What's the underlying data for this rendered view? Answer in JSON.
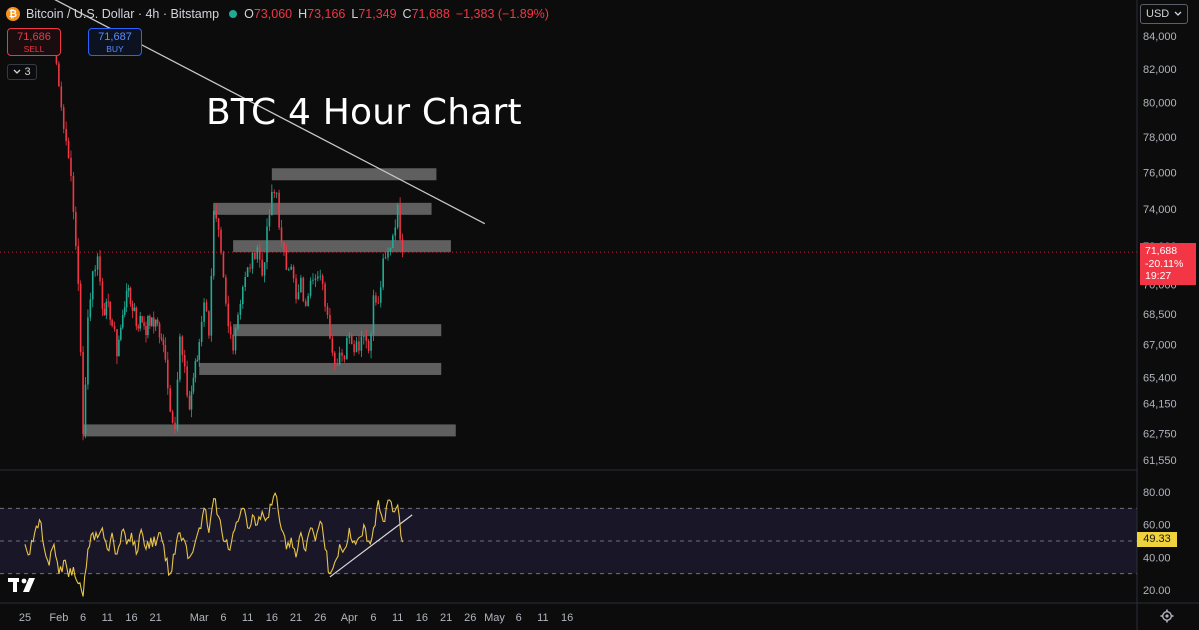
{
  "header": {
    "symbol": "Bitcoin / U.S. Dollar · 4h · Bitstamp",
    "ohlc": {
      "o": "73,060",
      "h": "73,166",
      "l": "71,349",
      "c": "71,688",
      "change": "−1,383 (−1.89%)"
    },
    "icons": {
      "logo": "bitcoin-logo",
      "status": "market-status-dot"
    }
  },
  "trade": {
    "sell_price": "71,686",
    "sell_label": "SELL",
    "buy_price": "71,687",
    "buy_label": "BUY"
  },
  "indicators": {
    "count": "3",
    "icon": "chevron-down-icon"
  },
  "overlay_title": "BTC 4 Hour Chart",
  "currency": {
    "label": "USD",
    "icon": "chevron-down-icon"
  },
  "price_tag": {
    "price": "71,688",
    "change_pct": "-20.11%",
    "countdown": "19:27"
  },
  "rsi": {
    "value": "49.33"
  },
  "colors": {
    "background": "#0c0c0c",
    "up": "#22ab94",
    "down": "#f23645",
    "rsi_line": "#e8c547",
    "zone": "#808080",
    "accent": "#f23645"
  },
  "chart_data": [
    {
      "type": "candlestick",
      "title": "BTC 4 Hour Chart",
      "symbol": "BTC/USD",
      "interval": "4h",
      "exchange": "Bitstamp",
      "x_tick_labels": [
        "25",
        "Feb",
        "6",
        "11",
        "16",
        "21",
        "Mar",
        "6",
        "11",
        "16",
        "21",
        "26",
        "Apr",
        "6",
        "11",
        "16",
        "21",
        "26",
        "May",
        "6",
        "11",
        "16"
      ],
      "y_tick_labels": [
        "84,000",
        "82,000",
        "80,000",
        "78,000",
        "76,000",
        "74,000",
        "72,000",
        "70,000",
        "68,500",
        "67,000",
        "65,400",
        "64,150",
        "62,750",
        "61,550"
      ],
      "ylim": [
        61000,
        85000
      ],
      "y_scale": "log",
      "grid": false,
      "support_resistance_zones": [
        {
          "from_date": "Mar 16",
          "to_date": "Apr 19",
          "price": 75900
        },
        {
          "from_date": "Mar 4",
          "to_date": "Apr 18",
          "price": 74000
        },
        {
          "from_date": "Mar 8",
          "to_date": "Apr 22",
          "price": 72000
        },
        {
          "from_date": "Mar 8",
          "to_date": "Apr 20",
          "price": 67700
        },
        {
          "from_date": "Mar 1",
          "to_date": "Apr 20",
          "price": 65800
        },
        {
          "from_date": "Feb 6",
          "to_date": "Apr 23",
          "price": 62900
        }
      ],
      "trendline": {
        "from": [
          "Jan 31",
          86300
        ],
        "to": [
          "Apr 29",
          73200
        ]
      },
      "close_path": [
        [
          "Jan 31",
          83000
        ],
        [
          "Feb 1",
          81000
        ],
        [
          "Feb 2",
          78600
        ],
        [
          "Feb 3",
          77500
        ],
        [
          "Feb 4",
          73600
        ],
        [
          "Feb 5",
          70000
        ],
        [
          "Feb 6",
          62800
        ],
        [
          "Feb 7",
          68500
        ],
        [
          "Feb 8",
          70300
        ],
        [
          "Feb 9",
          71300
        ],
        [
          "Feb 10",
          69300
        ],
        [
          "Feb 12",
          68000
        ],
        [
          "Feb 13",
          66400
        ],
        [
          "Feb 15",
          70000
        ],
        [
          "Feb 17",
          68300
        ],
        [
          "Feb 19",
          67700
        ],
        [
          "Feb 21",
          68200
        ],
        [
          "Feb 23",
          66700
        ],
        [
          "Feb 24",
          64000
        ],
        [
          "Feb 25",
          63100
        ],
        [
          "Feb 26",
          67100
        ],
        [
          "Feb 27",
          65800
        ],
        [
          "Feb 28",
          64000
        ],
        [
          "Mar 1",
          66900
        ],
        [
          "Mar 2",
          69300
        ],
        [
          "Mar 3",
          68000
        ],
        [
          "Mar 4",
          73600
        ],
        [
          "Mar 5",
          72200
        ],
        [
          "Mar 6",
          70200
        ],
        [
          "Mar 7",
          68000
        ],
        [
          "Mar 8",
          66900
        ],
        [
          "Mar 9",
          68400
        ],
        [
          "Mar 10",
          70200
        ],
        [
          "Mar 11",
          70800
        ],
        [
          "Mar 12",
          71000
        ],
        [
          "Mar 13",
          72000
        ],
        [
          "Mar 14",
          70800
        ],
        [
          "Mar 15",
          72600
        ],
        [
          "Mar 16",
          74300
        ],
        [
          "Mar 17",
          75000
        ],
        [
          "Mar 18",
          72200
        ],
        [
          "Mar 19",
          70800
        ],
        [
          "Mar 20",
          71000
        ],
        [
          "Mar 21",
          69300
        ],
        [
          "Mar 22",
          70200
        ],
        [
          "Mar 23",
          68400
        ],
        [
          "Mar 24",
          70500
        ],
        [
          "Mar 25",
          71000
        ],
        [
          "Mar 26",
          70200
        ],
        [
          "Mar 27",
          68900
        ],
        [
          "Mar 28",
          67700
        ],
        [
          "Mar 29",
          66300
        ],
        [
          "Mar 30",
          66600
        ],
        [
          "Mar 31",
          66200
        ],
        [
          "Apr 1",
          67900
        ],
        [
          "Apr 2",
          67200
        ],
        [
          "Apr 3",
          66800
        ],
        [
          "Apr 4",
          67600
        ],
        [
          "Apr 5",
          67000
        ],
        [
          "Apr 6",
          69300
        ],
        [
          "Apr 7",
          68600
        ],
        [
          "Apr 8",
          71000
        ],
        [
          "Apr 9",
          71900
        ],
        [
          "Apr 10",
          72600
        ],
        [
          "Apr 11",
          73600
        ],
        [
          "Apr 12",
          71688
        ]
      ]
    },
    {
      "type": "line",
      "indicator": "RSI",
      "y_tick_labels": [
        "80.00",
        "60.00",
        "40.00",
        "20.00"
      ],
      "ylim": [
        14,
        84
      ],
      "band_levels": [
        70,
        50,
        30
      ],
      "current_value": 49.33,
      "trendline": {
        "from": [
          "Mar 28",
          28
        ],
        "to": [
          "Apr 14",
          66
        ]
      },
      "series": [
        {
          "values": [
            [
              "Jan 25",
              48
            ],
            [
              "Jan 26",
              42
            ],
            [
              "Jan 27",
              55
            ],
            [
              "Jan 28",
              63
            ],
            [
              "Jan 29",
              45
            ],
            [
              "Jan 30",
              35
            ],
            [
              "Jan 31",
              48
            ],
            [
              "Feb 1",
              30
            ],
            [
              "Feb 2",
              38
            ],
            [
              "Feb 3",
              28
            ],
            [
              "Feb 4",
              34
            ],
            [
              "Feb 5",
              24
            ],
            [
              "Feb 6",
              16
            ],
            [
              "Feb 7",
              45
            ],
            [
              "Feb 8",
              55
            ],
            [
              "Feb 9",
              52
            ],
            [
              "Feb 10",
              58
            ],
            [
              "Feb 11",
              45
            ],
            [
              "Feb 12",
              55
            ],
            [
              "Feb 13",
              42
            ],
            [
              "Feb 14",
              56
            ],
            [
              "Feb 15",
              48
            ],
            [
              "Feb 16",
              55
            ],
            [
              "Feb 17",
              42
            ],
            [
              "Feb 18",
              57
            ],
            [
              "Feb 19",
              45
            ],
            [
              "Feb 20",
              52
            ],
            [
              "Feb 21",
              47
            ],
            [
              "Feb 22",
              55
            ],
            [
              "Feb 23",
              38
            ],
            [
              "Feb 24",
              30
            ],
            [
              "Feb 25",
              42
            ],
            [
              "Feb 26",
              55
            ],
            [
              "Feb 27",
              50
            ],
            [
              "Feb 28",
              40
            ],
            [
              "Mar 1",
              58
            ],
            [
              "Mar 2",
              70
            ],
            [
              "Mar 3",
              55
            ],
            [
              "Mar 4",
              76
            ],
            [
              "Mar 5",
              65
            ],
            [
              "Mar 6",
              50
            ],
            [
              "Mar 7",
              45
            ],
            [
              "Mar 8",
              55
            ],
            [
              "Mar 9",
              62
            ],
            [
              "Mar 10",
              70
            ],
            [
              "Mar 11",
              58
            ],
            [
              "Mar 12",
              66
            ],
            [
              "Mar 13",
              60
            ],
            [
              "Mar 14",
              68
            ],
            [
              "Mar 15",
              64
            ],
            [
              "Mar 16",
              72
            ],
            [
              "Mar 17",
              77
            ],
            [
              "Mar 18",
              57
            ],
            [
              "Mar 19",
              45
            ],
            [
              "Mar 20",
              52
            ],
            [
              "Mar 21",
              40
            ],
            [
              "Mar 22",
              55
            ],
            [
              "Mar 23",
              44
            ],
            [
              "Mar 24",
              58
            ],
            [
              "Mar 25",
              50
            ],
            [
              "Mar 26",
              62
            ],
            [
              "Mar 27",
              45
            ],
            [
              "Mar 28",
              30
            ],
            [
              "Mar 29",
              37
            ],
            [
              "Mar 30",
              48
            ],
            [
              "Mar 31",
              45
            ],
            [
              "Apr 1",
              58
            ],
            [
              "Apr 2",
              50
            ],
            [
              "Apr 3",
              52
            ],
            [
              "Apr 4",
              60
            ],
            [
              "Apr 5",
              50
            ],
            [
              "Apr 6",
              58
            ],
            [
              "Apr 7",
              75
            ],
            [
              "Apr 8",
              62
            ],
            [
              "Apr 9",
              75
            ],
            [
              "Apr 10",
              68
            ],
            [
              "Apr 11",
              72
            ],
            [
              "Apr 12",
              49.33
            ]
          ]
        }
      ]
    }
  ]
}
